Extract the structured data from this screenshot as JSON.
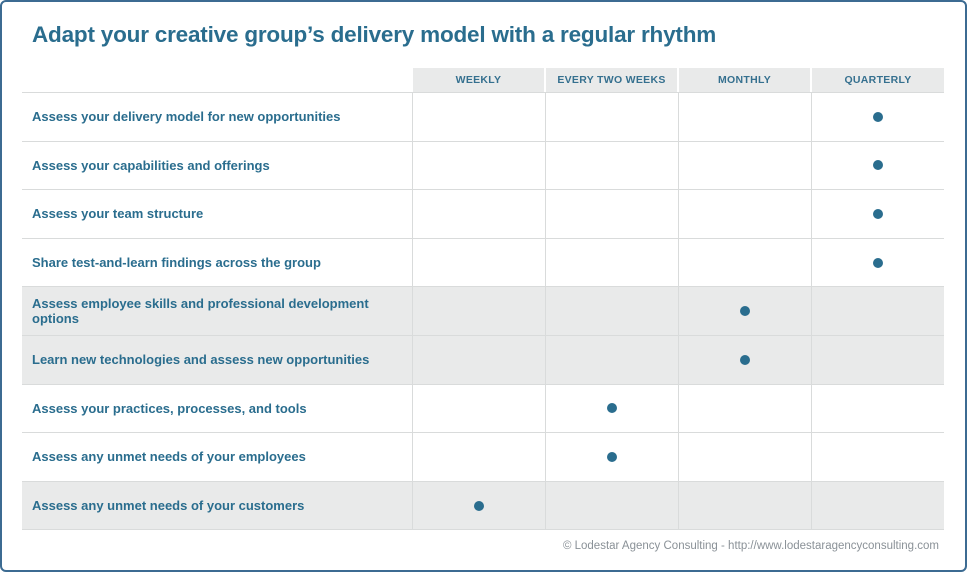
{
  "page": {
    "title": "Adapt your creative group’s delivery model with a regular rhythm",
    "footer": "© Lodestar Agency Consulting - http://www.lodestaragencyconsulting.com"
  },
  "colors": {
    "accent_teal": "#2a6d8e",
    "frame_border_blue": "#3c6b92",
    "header_band_gray": "#e9eaea",
    "shaded_row_gray": "#e9eaea",
    "grid_line_gray": "#d9dbdb",
    "footer_text_gray": "#8a9197"
  },
  "chart_data": {
    "type": "table",
    "title": "Adapt your creative group’s delivery model with a regular rhythm",
    "columns": [
      "WEEKLY",
      "EVERY TWO WEEKS",
      "MONTHLY",
      "QUARTERLY"
    ],
    "marker": "filled-dot",
    "rows": [
      {
        "label": "Assess your delivery model for new opportunities",
        "frequency": "QUARTERLY",
        "shaded": false
      },
      {
        "label": "Assess your capabilities and offerings",
        "frequency": "QUARTERLY",
        "shaded": false
      },
      {
        "label": "Assess your team structure",
        "frequency": "QUARTERLY",
        "shaded": false
      },
      {
        "label": "Share test-and-learn findings across the group",
        "frequency": "QUARTERLY",
        "shaded": false
      },
      {
        "label": "Assess employee skills and professional development options",
        "frequency": "MONTHLY",
        "shaded": true
      },
      {
        "label": "Learn new technologies and assess new opportunities",
        "frequency": "MONTHLY",
        "shaded": true
      },
      {
        "label": "Assess your practices, processes, and tools",
        "frequency": "EVERY TWO WEEKS",
        "shaded": false
      },
      {
        "label": "Assess any unmet needs of your employees",
        "frequency": "EVERY TWO WEEKS",
        "shaded": false
      },
      {
        "label": "Assess any unmet needs of your customers",
        "frequency": "WEEKLY",
        "shaded": true
      }
    ]
  }
}
